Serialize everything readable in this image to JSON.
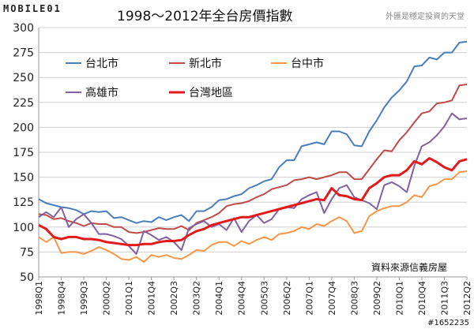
{
  "page": {
    "logo": "MOBILE01",
    "watermark": "外匯是穩定投資的天堂",
    "tag": "#1652235"
  },
  "chart_data": {
    "type": "line",
    "title": "1998～2012年全台房價指數",
    "source_note": "資料來源信義房屋",
    "xlabel": "",
    "ylabel": "",
    "ylim": [
      50,
      300
    ],
    "yticks": [
      50,
      75,
      100,
      125,
      150,
      175,
      200,
      225,
      250,
      275,
      300
    ],
    "grid": true,
    "legend_position": "top-left",
    "x": [
      "1998Q1",
      "1998Q2",
      "1998Q3",
      "1998Q4",
      "1999Q1",
      "1999Q2",
      "1999Q3",
      "1999Q4",
      "2000Q1",
      "2000Q2",
      "2000Q3",
      "2000Q4",
      "2001Q1",
      "2001Q2",
      "2001Q3",
      "2001Q4",
      "2002Q1",
      "2002Q2",
      "2002Q3",
      "2002Q4",
      "2003Q1",
      "2003Q2",
      "2003Q3",
      "2003Q4",
      "2004Q1",
      "2004Q2",
      "2004Q3",
      "2004Q4",
      "2005Q1",
      "2005Q2",
      "2005Q3",
      "2005Q4",
      "2006Q1",
      "2006Q2",
      "2006Q3",
      "2006Q4",
      "2007Q1",
      "2007Q2",
      "2007Q3",
      "2007Q4",
      "2008Q1",
      "2008Q2",
      "2008Q3",
      "2008Q4",
      "2009Q1",
      "2009Q2",
      "2009Q3",
      "2009Q4",
      "2010Q1",
      "2010Q2",
      "2010Q3",
      "2010Q4",
      "2011Q1",
      "2011Q2",
      "2011Q3",
      "2011Q4",
      "2012Q1",
      "2012Q2"
    ],
    "x_tick_labels": [
      "1998Q1",
      "1998Q4",
      "1999Q3",
      "2000Q2",
      "2001Q1",
      "2001Q4",
      "2002Q3",
      "2003Q2",
      "2004Q1",
      "2004Q4",
      "2005Q3",
      "2006Q2",
      "2007Q1",
      "2007Q4",
      "2008Q3",
      "2009Q2",
      "2010Q1",
      "2010Q4",
      "2011Q3",
      "2012Q2"
    ],
    "series": [
      {
        "name": "台北市",
        "color": "#4a7ebb",
        "values": [
          128,
          124,
          122,
          120,
          119,
          117,
          113,
          116,
          115,
          116,
          109,
          110,
          107,
          104,
          106,
          105,
          110,
          107,
          110,
          112,
          106,
          116,
          116,
          120,
          127,
          128,
          131,
          133,
          139,
          142,
          146,
          148,
          160,
          167,
          167,
          181,
          183,
          185,
          183,
          196,
          196,
          193,
          182,
          181,
          196,
          207,
          220,
          230,
          237,
          246,
          261,
          262,
          270,
          268,
          275,
          275,
          285,
          286
        ]
      },
      {
        "name": "新北市",
        "color": "#be4b48",
        "values": [
          113,
          112,
          108,
          109,
          106,
          104,
          101,
          104,
          103,
          103,
          100,
          100,
          95,
          94,
          95,
          97,
          99,
          98,
          98,
          101,
          97,
          104,
          107,
          110,
          114,
          121,
          123,
          124,
          126,
          130,
          133,
          138,
          140,
          142,
          147,
          148,
          150,
          148,
          150,
          152,
          155,
          155,
          148,
          148,
          158,
          168,
          177,
          176,
          187,
          195,
          205,
          214,
          216,
          224,
          225,
          227,
          242,
          243
        ]
      },
      {
        "name": "台中市",
        "color": "#f79646",
        "values": [
          90,
          85,
          90,
          74,
          75,
          75,
          73,
          76,
          80,
          77,
          73,
          68,
          67,
          70,
          65,
          72,
          70,
          72,
          69,
          68,
          72,
          77,
          76,
          82,
          85,
          85,
          81,
          86,
          83,
          87,
          90,
          87,
          93,
          94,
          96,
          100,
          98,
          103,
          101,
          106,
          110,
          106,
          94,
          96,
          111,
          116,
          119,
          121,
          121,
          125,
          132,
          130,
          141,
          143,
          148,
          148,
          155,
          156
        ]
      },
      {
        "name": "高雄市",
        "color": "#7f62a1",
        "values": [
          110,
          115,
          110,
          120,
          100,
          108,
          113,
          104,
          93,
          93,
          91,
          88,
          81,
          73,
          96,
          92,
          87,
          90,
          85,
          77,
          99,
          103,
          106,
          100,
          103,
          97,
          109,
          95,
          106,
          112,
          104,
          108,
          118,
          120,
          119,
          128,
          132,
          135,
          114,
          128,
          139,
          142,
          130,
          127,
          124,
          118,
          142,
          145,
          141,
          135,
          161,
          181,
          185,
          192,
          201,
          214,
          208,
          209
        ]
      },
      {
        "name": "台灣地區",
        "color": "#e31a1c",
        "values": [
          102,
          98,
          90,
          88,
          90,
          90,
          88,
          88,
          87,
          85,
          84,
          83,
          82,
          82,
          83,
          83,
          85,
          86,
          86,
          87,
          92,
          96,
          98,
          102,
          104,
          106,
          108,
          110,
          110,
          112,
          114,
          116,
          118,
          120,
          122,
          124,
          126,
          128,
          127,
          139,
          132,
          131,
          128,
          127,
          139,
          144,
          150,
          152,
          152,
          157,
          166,
          163,
          169,
          165,
          160,
          157,
          166,
          168
        ]
      }
    ]
  }
}
